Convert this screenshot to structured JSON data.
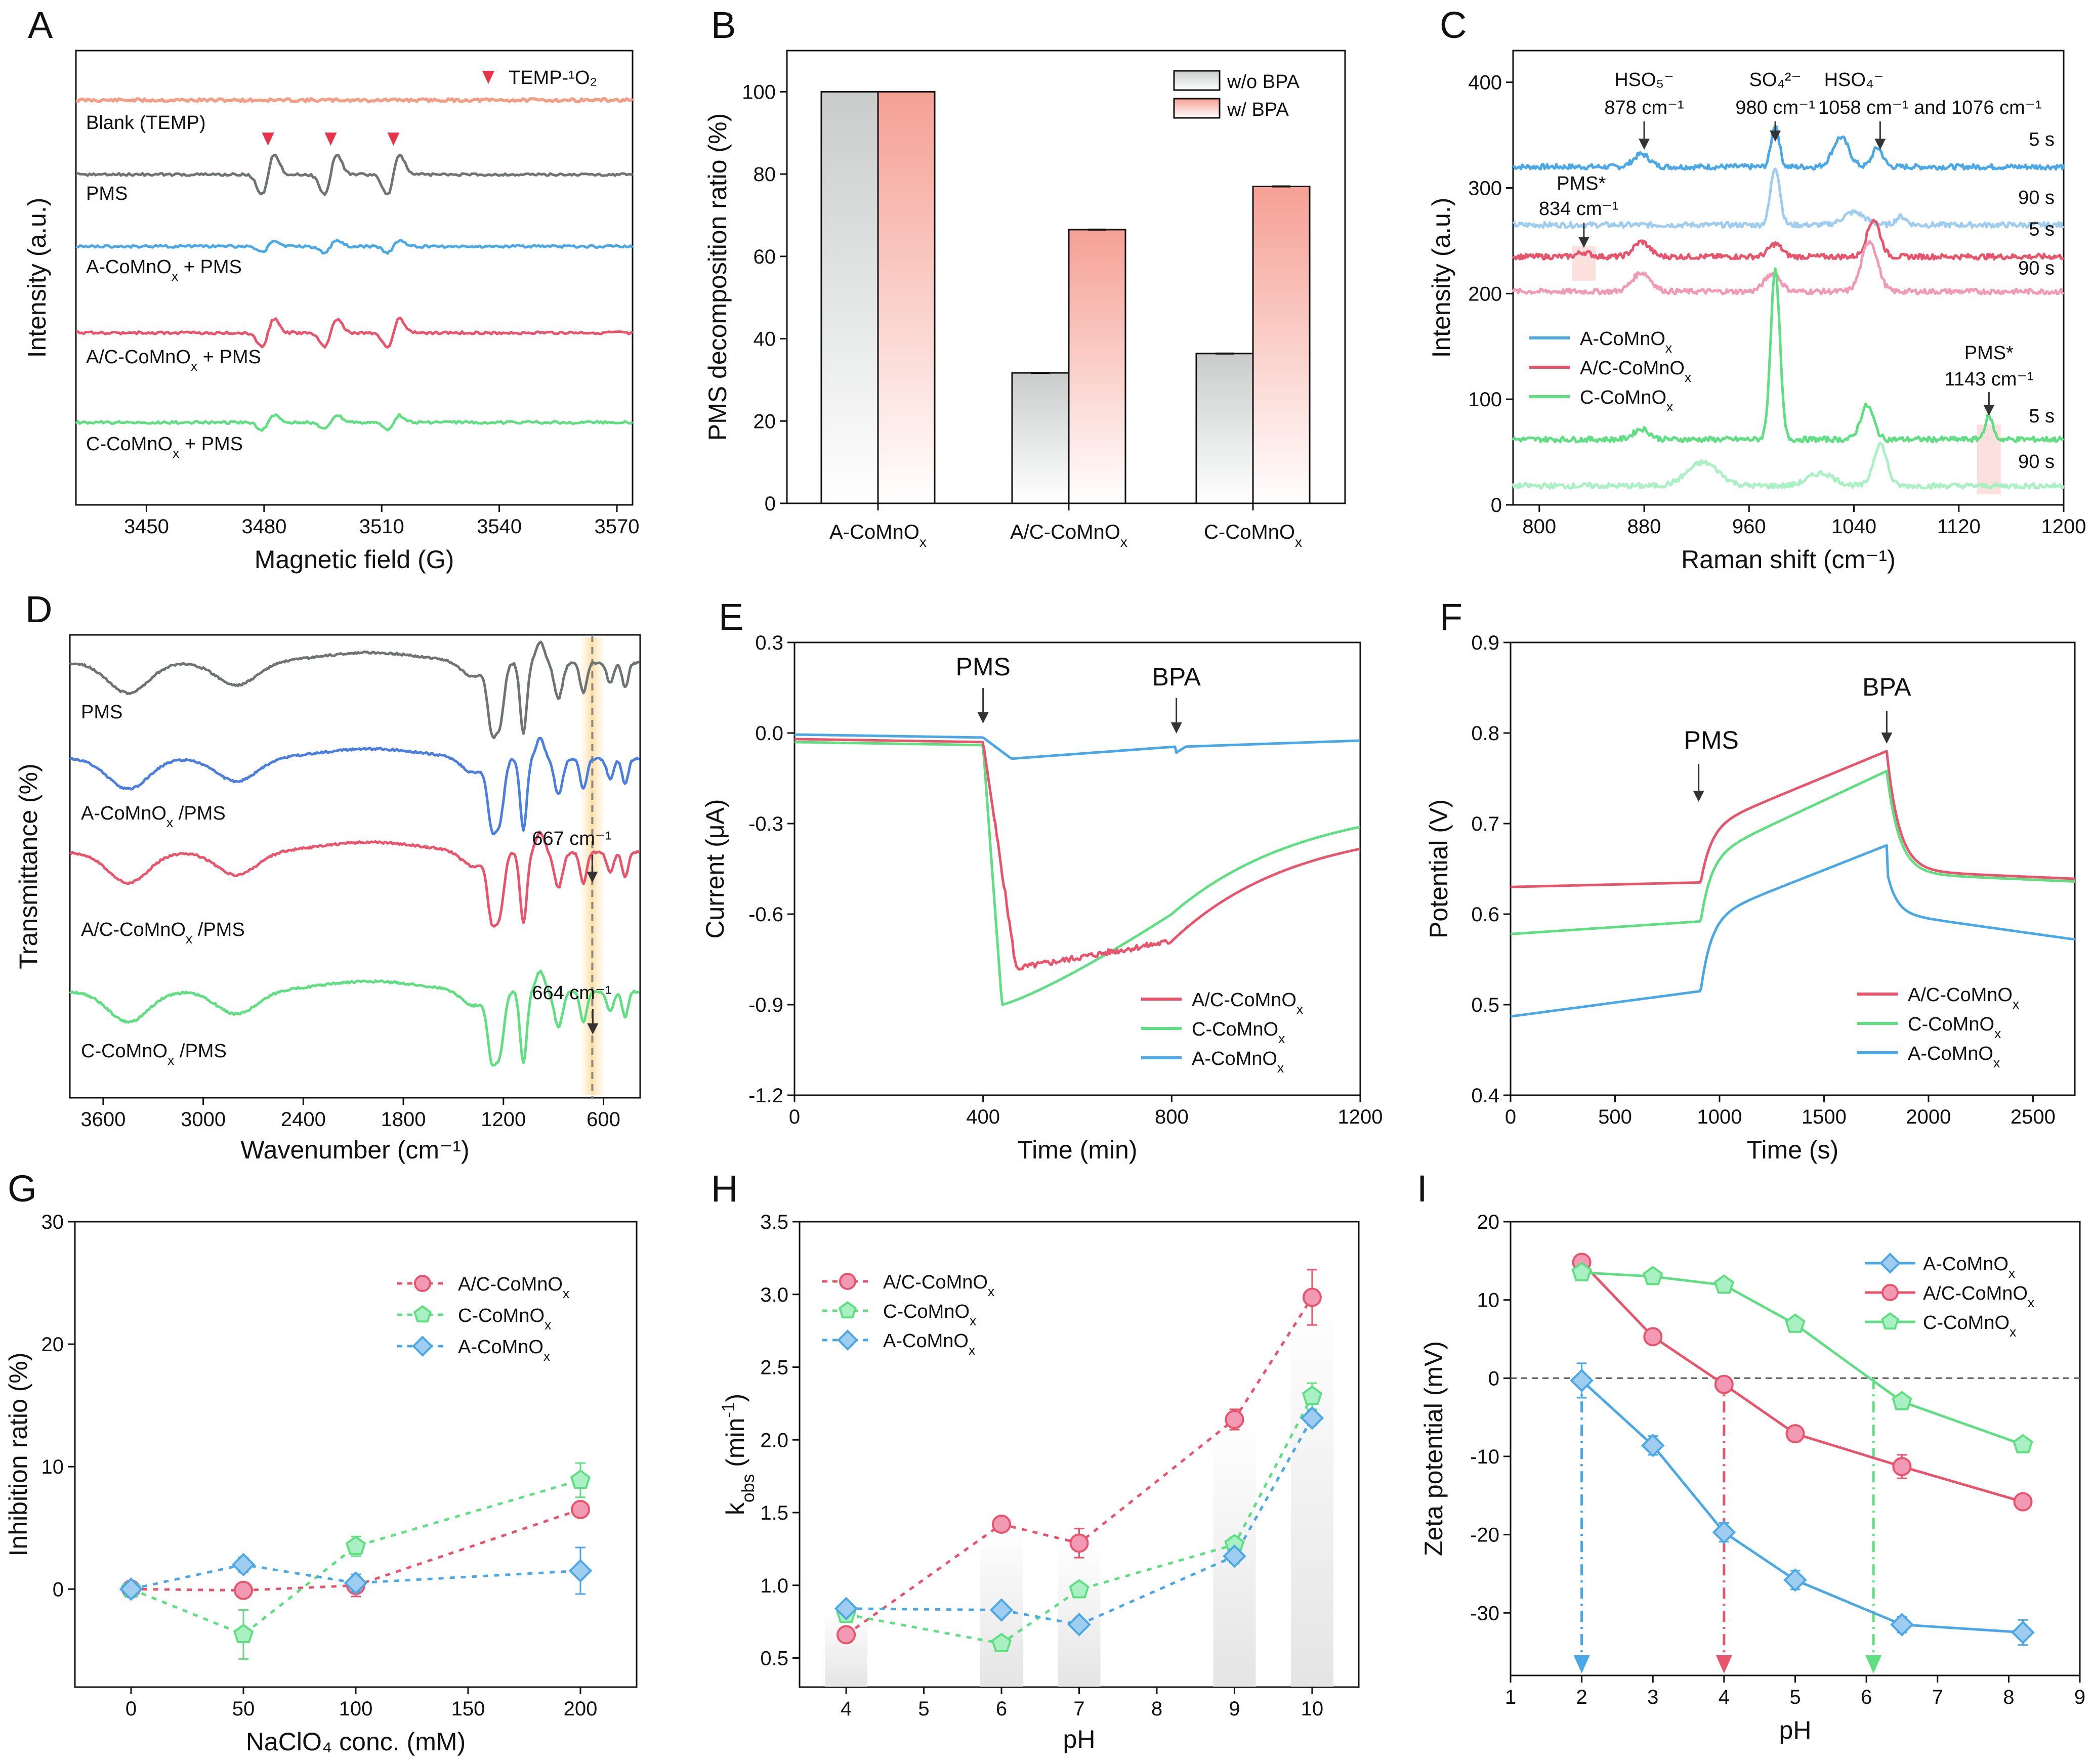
{
  "colors": {
    "red": "#e8546c",
    "green": "#5fde82",
    "blue": "#4aa8e6",
    "gray": "#6e7472",
    "salmon": "#f19f86",
    "blue_light": "#9fcdf0",
    "red_light": "#f29ab4",
    "green_light": "#a9f0c2"
  },
  "chart_data": [
    {
      "panel": "A",
      "type": "line",
      "xlabel": "Magnetic field (G)",
      "ylabel": "Intensity (a.u.)",
      "xlim": [
        3432,
        3574
      ],
      "xticks": [
        "3450",
        "3480",
        "3510",
        "3540",
        "3570"
      ],
      "legend": "TEMP-¹O₂",
      "series": [
        {
          "name": "Blank (TEMP)",
          "color": "#f19f86",
          "amp": 0
        },
        {
          "name": "PMS",
          "color": "#6e7472",
          "amp": 1.0
        },
        {
          "name": "A-CoMnOx + PMS",
          "color": "#4aa8e6",
          "amp": 0.3
        },
        {
          "name": "A/C-CoMnOx + PMS",
          "color": "#e8546c",
          "amp": 0.7
        },
        {
          "name": "C-CoMnOx + PMS",
          "color": "#5fde82",
          "amp": 0.35
        }
      ],
      "peaks": [
        3481,
        3497,
        3513
      ]
    },
    {
      "panel": "B",
      "type": "bar",
      "ylabel": "PMS decomposition ratio (%)",
      "ylim": [
        0,
        110
      ],
      "yticks": [
        "0",
        "20",
        "40",
        "60",
        "80",
        "100"
      ],
      "categories": [
        "A-CoMnOx",
        "A/C-CoMnOx",
        "C-CoMnOx"
      ],
      "series": [
        {
          "name": "w/o BPA",
          "values": [
            100,
            31.7,
            36.4
          ]
        },
        {
          "name": "w/   BPA",
          "values": [
            100,
            66.5,
            77.0
          ]
        }
      ]
    },
    {
      "panel": "C",
      "type": "line",
      "xlabel": "Raman shift (cm⁻¹)",
      "ylabel": "Intensity (a.u.)",
      "xlim": [
        780,
        1200
      ],
      "ylim": [
        0,
        430
      ],
      "xticks": [
        "800",
        "880",
        "960",
        "1040",
        "1120",
        "1200"
      ],
      "yticks": [
        "0",
        "100",
        "200",
        "300",
        "400"
      ],
      "legend": [
        "A-CoMnOx",
        "A/C-CoMnOx",
        "C-CoMnOx"
      ],
      "annotations": {
        "hso5": "HSO₅⁻",
        "hso5_pos": "878 cm⁻¹",
        "so4": "SO₄²⁻",
        "so4_pos": "980 cm⁻¹",
        "hso4": "HSO₄⁻",
        "hso4_pos": "1058 cm⁻¹ and 1076 cm⁻¹",
        "pms1": "PMS*",
        "pms1_pos": "834 cm⁻¹",
        "pms2": "PMS*",
        "pms2_pos": "1143 cm⁻¹",
        "t5": "5 s",
        "t90": "90 s"
      },
      "series": [
        {
          "name": "A-CoMnOx 5 s",
          "base": 320
        },
        {
          "name": "A-CoMnOx 90 s",
          "base": 265
        },
        {
          "name": "A/C-CoMnOx 5 s",
          "base": 235
        },
        {
          "name": "A/C-CoMnOx 90 s",
          "base": 202
        },
        {
          "name": "C-CoMnOx 5 s",
          "base": 62
        },
        {
          "name": "C-CoMnOx 90 s",
          "base": 18
        }
      ]
    },
    {
      "panel": "D",
      "type": "line",
      "xlabel": "Wavenumber (cm⁻¹)",
      "ylabel": "Transmittance (%)",
      "xlim": [
        3800,
        380
      ],
      "xticks": [
        "3600",
        "3000",
        "2400",
        "1800",
        "1200",
        "600"
      ],
      "series": [
        {
          "name": "PMS",
          "color": "#6e7472"
        },
        {
          "name": "A-CoMnOx /PMS",
          "color": "#4a7fe0"
        },
        {
          "name": "A/C-CoMnOx /PMS",
          "color": "#e8546c"
        },
        {
          "name": "C-CoMnOx /PMS",
          "color": "#5fde82"
        }
      ],
      "annotations": [
        "667 cm⁻¹",
        "664 cm⁻¹"
      ]
    },
    {
      "panel": "E",
      "type": "line",
      "xlabel": "Time (min)",
      "ylabel": "Current (μA)",
      "xlim": [
        0,
        1200
      ],
      "ylim": [
        -1.2,
        0.3
      ],
      "xticks": [
        "0",
        "400",
        "800",
        "1200"
      ],
      "yticks": [
        "-1.2",
        "-0.9",
        "-0.6",
        "-0.3",
        "0.0",
        "0.3"
      ],
      "markers": [
        "PMS",
        "BPA"
      ],
      "marker_x": [
        400,
        810
      ],
      "series": [
        {
          "name": "A/C-CoMnOx",
          "color": "#e8546c"
        },
        {
          "name": "C-CoMnOx",
          "color": "#5fde82"
        },
        {
          "name": "A-CoMnOx",
          "color": "#4aa8e6"
        }
      ]
    },
    {
      "panel": "F",
      "type": "line",
      "xlabel": "Time (s)",
      "ylabel": "Potential (V)",
      "xlim": [
        0,
        2700
      ],
      "ylim": [
        0.4,
        0.9
      ],
      "xticks": [
        "0",
        "500",
        "1000",
        "1500",
        "2000",
        "2500"
      ],
      "yticks": [
        "0.4",
        "0.5",
        "0.6",
        "0.7",
        "0.8",
        "0.9"
      ],
      "markers": [
        "PMS",
        "BPA"
      ],
      "marker_x": [
        900,
        1800
      ],
      "series": [
        {
          "name": "A/C-CoMnOx",
          "color": "#e8546c"
        },
        {
          "name": "C-CoMnOx",
          "color": "#5fde82"
        },
        {
          "name": "A-CoMnOx",
          "color": "#4aa8e6"
        }
      ]
    },
    {
      "panel": "G",
      "type": "scatter",
      "xlabel": "NaClO₄ conc. (mM)",
      "ylabel": "Inhibition ratio (%)",
      "xlim": [
        -25,
        225
      ],
      "ylim": [
        -8,
        30
      ],
      "xticks": [
        "0",
        "50",
        "100",
        "150",
        "200"
      ],
      "yticks": [
        "0",
        "10",
        "20",
        "30"
      ],
      "x": [
        0,
        50,
        100,
        200
      ],
      "series": [
        {
          "name": "A/C-CoMnOx",
          "values": [
            0,
            -0.1,
            0.3,
            6.5
          ],
          "err": [
            0,
            0.6,
            0.9,
            0.5
          ]
        },
        {
          "name": "C-CoMnOx",
          "values": [
            0,
            -3.7,
            3.5,
            8.9
          ],
          "err": [
            0,
            2.0,
            0.8,
            1.4
          ]
        },
        {
          "name": "A-CoMnOx",
          "values": [
            0,
            2.0,
            0.5,
            1.5
          ],
          "err": [
            0,
            0.6,
            0.7,
            1.9
          ]
        }
      ]
    },
    {
      "panel": "H",
      "type": "scatter",
      "xlabel": "pH",
      "ylabel": "kₒᵦₛ",
      "ylabel_main": "k",
      "ylabel_sub": "obs",
      "ylabel_unit": "(min",
      "ylabel_sup": "-1",
      "ylabel_close": ")",
      "xlim": [
        3.4,
        10.6
      ],
      "ylim": [
        0.3,
        3.5
      ],
      "xticks": [
        "4",
        "5",
        "6",
        "7",
        "8",
        "9",
        "10"
      ],
      "yticks": [
        "0.5",
        "1.0",
        "1.5",
        "2.0",
        "2.5",
        "3.0",
        "3.5"
      ],
      "x": [
        4,
        6,
        7,
        9,
        10
      ],
      "series": [
        {
          "name": "A/C-CoMnOx",
          "values": [
            0.66,
            1.42,
            1.29,
            2.14,
            2.98
          ],
          "err": [
            0.02,
            0.03,
            0.1,
            0.07,
            0.19
          ]
        },
        {
          "name": "C-CoMnOx",
          "values": [
            0.8,
            0.6,
            0.97,
            1.28,
            2.3
          ],
          "err": [
            0.02,
            0.03,
            0.03,
            0.05,
            0.09
          ]
        },
        {
          "name": "A-CoMnOx",
          "values": [
            0.84,
            0.83,
            0.73,
            1.2,
            2.15
          ],
          "err": [
            0.02,
            0.02,
            0.03,
            0.05,
            0.05
          ]
        }
      ]
    },
    {
      "panel": "I",
      "type": "line",
      "xlabel": "pH",
      "ylabel": "Zeta potential (mV)",
      "xlim": [
        1,
        9
      ],
      "ylim": [
        -38,
        20
      ],
      "xticks": [
        "1",
        "2",
        "3",
        "4",
        "5",
        "6",
        "7",
        "8",
        "9"
      ],
      "yticks": [
        "-30",
        "-20",
        "-10",
        "0",
        "10",
        "20"
      ],
      "series": [
        {
          "name": "A-CoMnOx",
          "x": [
            2,
            3,
            4,
            5,
            6.5,
            8.2
          ],
          "values": [
            -0.3,
            -8.6,
            -19.7,
            -25.8,
            -31.5,
            -32.5
          ],
          "err": [
            2.2,
            1.2,
            1.2,
            1.2,
            1.0,
            1.6
          ],
          "pzc": 2
        },
        {
          "name": "A/C-CoMnOx",
          "x": [
            2,
            3,
            4,
            5,
            6.5,
            8.2
          ],
          "values": [
            14.8,
            5.3,
            -0.8,
            -7.1,
            -11.3,
            -15.8
          ],
          "err": [
            0.6,
            0.5,
            0.4,
            0.5,
            1.5,
            0.6
          ],
          "pzc": 4
        },
        {
          "name": "C-CoMnOx",
          "x": [
            2,
            3,
            4,
            5,
            6.5,
            8.2
          ],
          "values": [
            13.5,
            13.0,
            11.9,
            6.9,
            -3.0,
            -8.5
          ],
          "err": [
            0.9,
            0.5,
            0.5,
            0.5,
            0.5,
            0.5
          ],
          "pzc": 6.1
        }
      ]
    }
  ]
}
